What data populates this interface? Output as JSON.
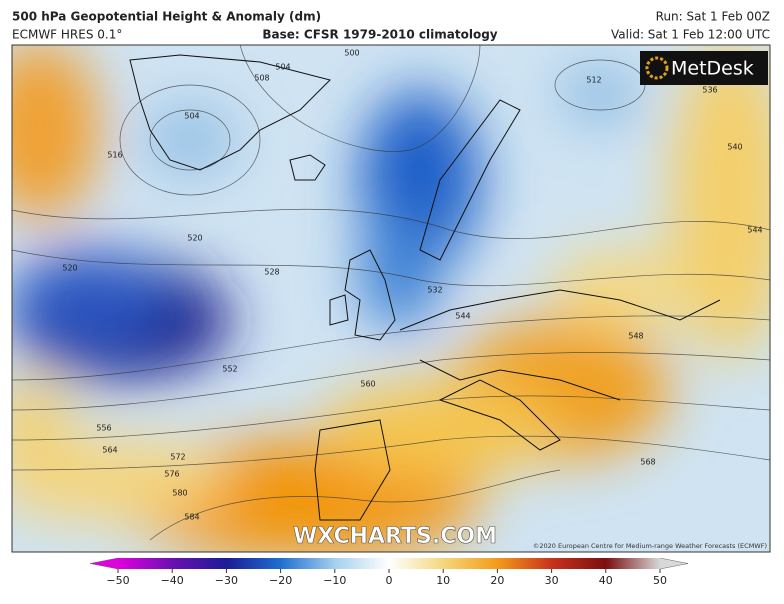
{
  "header": {
    "title": "500 hPa Geopotential Height & Anomaly (dm)",
    "model": "ECMWF HRES 0.1°",
    "base": "Base: CFSR 1979-2010 climatology",
    "run": "Run: Sat 1 Feb 00Z",
    "valid": "Valid: Sat 1 Feb 12:00 UTC"
  },
  "logo": "MetDesk",
  "watermark": "WXCHARTS.COM",
  "copyright": "©2020 European Centre for Medium-range Weather Forecasts (ECMWF)",
  "contour_labels": [
    500,
    504,
    508,
    504,
    512,
    516,
    536,
    540,
    544,
    520,
    520,
    528,
    532,
    544,
    552,
    556,
    564,
    572,
    576,
    580,
    584,
    548,
    568,
    560
  ],
  "colorbar": {
    "lim": [
      -50,
      50
    ],
    "ticks": [
      {
        "value": -50,
        "label": "−50"
      },
      {
        "value": -40,
        "label": "−40"
      },
      {
        "value": -30,
        "label": "−30"
      },
      {
        "value": -20,
        "label": "−20"
      },
      {
        "value": -10,
        "label": "−10"
      },
      0,
      10,
      20,
      30,
      40,
      50
    ],
    "colors": [
      "#e000e0",
      "#6a10b0",
      "#1c1c95",
      "#1f6fd0",
      "#a6d0ec",
      "#ffffff",
      "#f4d77c",
      "#f39b1a",
      "#c8321c",
      "#7a0f0f",
      "#d8d8d8"
    ]
  }
}
